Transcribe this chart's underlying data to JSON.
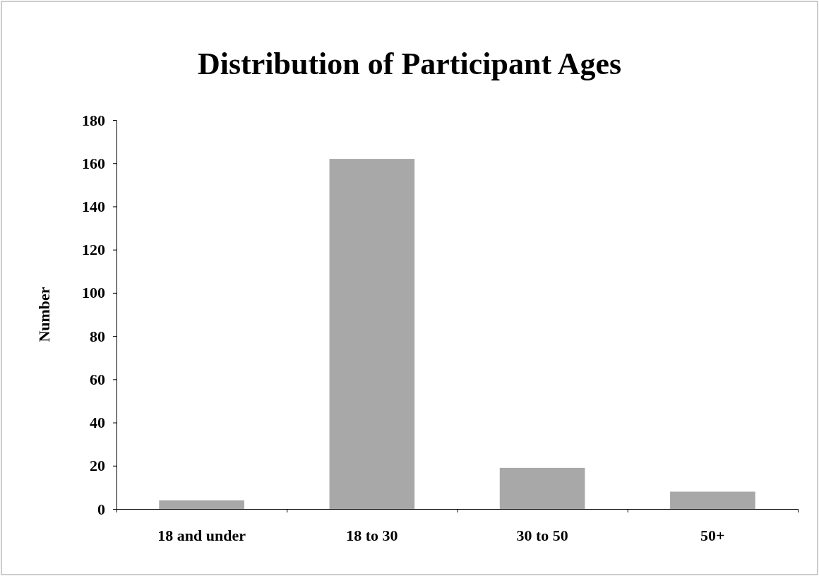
{
  "chart_data": {
    "type": "bar",
    "title": "Distribution of Participant Ages",
    "ylabel": "Number",
    "categories": [
      "18 and under",
      "18 to 30",
      "30 to 50",
      "50+"
    ],
    "values": [
      4,
      162,
      19,
      8
    ],
    "color": "#a8a8a8",
    "ylim": [
      0,
      180
    ],
    "yticks": [
      0,
      20,
      40,
      60,
      80,
      100,
      120,
      140,
      160,
      180
    ],
    "grid": false
  }
}
